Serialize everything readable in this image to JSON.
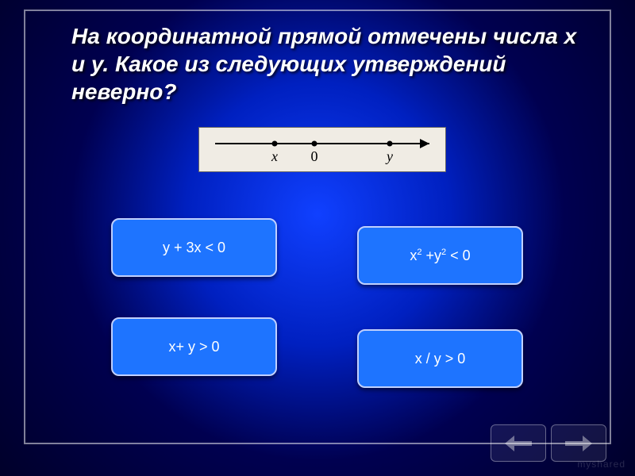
{
  "title": "На координатной прямой отмечены числа x и y. Какое из следующих утверждений неверно?",
  "numberline": {
    "bg_color": "#f0ece4",
    "line_color": "#000000",
    "labels": {
      "x": "x",
      "zero": "0",
      "y": "y"
    }
  },
  "answers": {
    "a": {
      "html": "y + 3x < 0"
    },
    "b": {
      "html": "x<sup>2</sup> +y<sup>2</sup> < 0"
    },
    "c": {
      "html": "x+ y > 0"
    },
    "d": {
      "html": "x / y > 0"
    }
  },
  "colors": {
    "button_bg": "#1e74ff",
    "button_border": "#c0d0ff",
    "text": "#ffffff"
  },
  "watermark": "myshared"
}
